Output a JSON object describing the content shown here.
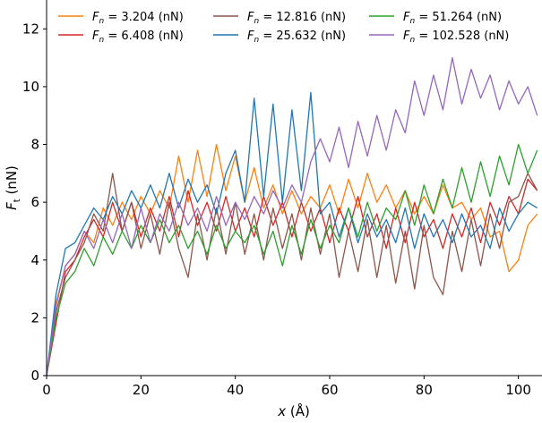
{
  "chart_data": {
    "type": "line",
    "title": "",
    "xlabel": "x (Å)",
    "ylabel": "F_t (nN)",
    "xlim": [
      0,
      105
    ],
    "ylim": [
      0,
      13
    ],
    "xticks": [
      0,
      20,
      40,
      60,
      80,
      100
    ],
    "yticks": [
      0,
      2,
      4,
      6,
      8,
      10,
      12
    ],
    "grid": false,
    "legend_position": "top",
    "x": [
      0,
      2,
      4,
      6,
      8,
      10,
      12,
      14,
      16,
      18,
      20,
      22,
      24,
      26,
      28,
      30,
      32,
      34,
      36,
      38,
      40,
      42,
      44,
      46,
      48,
      50,
      52,
      54,
      56,
      58,
      60,
      62,
      64,
      66,
      68,
      70,
      72,
      74,
      76,
      78,
      80,
      82,
      84,
      86,
      88,
      90,
      92,
      94,
      96,
      98,
      100,
      102,
      104
    ],
    "series": [
      {
        "name": "3.204",
        "label_value": "= 3.204 (nN)",
        "color": "#ff7f0e",
        "values": [
          0,
          2.5,
          3.8,
          4.2,
          5.0,
          4.6,
          5.8,
          5.2,
          6.0,
          5.4,
          6.2,
          5.6,
          6.4,
          5.8,
          7.6,
          6.0,
          7.8,
          6.2,
          8.0,
          6.4,
          7.6,
          6.0,
          7.2,
          5.8,
          6.6,
          5.6,
          6.4,
          5.6,
          6.2,
          5.8,
          6.6,
          5.6,
          6.8,
          5.8,
          7.0,
          6.0,
          6.6,
          5.8,
          6.4,
          5.6,
          6.2,
          5.6,
          6.6,
          5.8,
          6.0,
          5.4,
          5.8,
          4.8,
          5.0,
          3.6,
          4.0,
          5.2,
          5.6
        ]
      },
      {
        "name": "6.408",
        "label_value": "= 6.408 (nN)",
        "color": "#d62728",
        "values": [
          0,
          1.8,
          3.6,
          4.0,
          4.8,
          5.4,
          4.8,
          6.0,
          5.0,
          6.0,
          4.8,
          5.8,
          5.0,
          6.2,
          4.8,
          6.4,
          5.2,
          6.0,
          5.0,
          6.2,
          5.0,
          5.8,
          4.8,
          6.2,
          5.2,
          6.0,
          4.8,
          6.0,
          5.0,
          5.8,
          4.6,
          5.8,
          5.0,
          6.2,
          4.8,
          5.6,
          4.4,
          5.8,
          4.6,
          6.0,
          4.8,
          5.4,
          4.4,
          5.6,
          4.8,
          5.8,
          4.6,
          6.0,
          5.2,
          6.2,
          5.6,
          6.8,
          6.4
        ]
      },
      {
        "name": "12.816",
        "label_value": "= 12.816 (nN)",
        "color": "#8c564b",
        "values": [
          0,
          2.2,
          3.4,
          4.0,
          4.6,
          5.6,
          5.0,
          7.0,
          5.0,
          6.0,
          4.4,
          5.6,
          4.2,
          6.0,
          4.4,
          3.4,
          5.6,
          4.0,
          5.8,
          4.2,
          6.0,
          4.2,
          5.6,
          4.0,
          5.8,
          4.4,
          5.6,
          4.0,
          5.8,
          4.2,
          5.6,
          3.4,
          5.0,
          3.6,
          5.4,
          3.4,
          5.2,
          3.2,
          5.0,
          3.0,
          5.2,
          3.4,
          2.8,
          5.0,
          3.6,
          5.4,
          3.8,
          5.6,
          4.4,
          6.0,
          6.2,
          7.0,
          6.4
        ]
      },
      {
        "name": "25.632",
        "label_value": "= 25.632 (nN)",
        "color": "#1f77b4",
        "values": [
          0,
          2.8,
          4.4,
          4.6,
          5.2,
          5.8,
          5.4,
          6.2,
          5.6,
          6.4,
          5.8,
          6.6,
          5.8,
          7.0,
          5.8,
          6.8,
          6.0,
          6.6,
          5.6,
          7.0,
          7.8,
          6.0,
          9.6,
          6.2,
          9.4,
          6.0,
          9.2,
          6.4,
          9.8,
          5.6,
          6.0,
          4.8,
          5.8,
          4.6,
          5.6,
          4.8,
          5.4,
          4.6,
          5.8,
          4.4,
          5.6,
          4.8,
          5.4,
          4.6,
          5.6,
          4.8,
          5.2,
          4.4,
          5.8,
          5.0,
          5.6,
          6.0,
          5.8
        ]
      },
      {
        "name": "51.264",
        "label_value": "= 51.264 (nN)",
        "color": "#2ca02c",
        "values": [
          0,
          2.0,
          3.2,
          3.6,
          4.4,
          3.8,
          4.8,
          4.2,
          5.0,
          4.4,
          5.2,
          4.6,
          5.4,
          4.6,
          5.2,
          4.4,
          5.0,
          4.2,
          5.2,
          4.4,
          5.0,
          4.6,
          5.2,
          4.2,
          5.0,
          3.8,
          5.2,
          4.2,
          5.4,
          4.4,
          5.2,
          4.6,
          5.8,
          4.8,
          6.0,
          5.0,
          5.8,
          5.4,
          6.4,
          5.2,
          6.6,
          5.6,
          6.8,
          5.8,
          7.2,
          6.0,
          7.4,
          6.2,
          7.6,
          6.6,
          8.0,
          7.0,
          7.8
        ]
      },
      {
        "name": "102.528",
        "label_value": "= 102.528 (nN)",
        "color": "#9467bd",
        "values": [
          0,
          2.4,
          3.8,
          4.2,
          5.0,
          4.4,
          5.4,
          4.6,
          5.6,
          4.4,
          5.8,
          4.6,
          5.6,
          5.0,
          6.0,
          5.2,
          5.8,
          5.0,
          6.2,
          5.2,
          6.0,
          5.4,
          6.2,
          5.6,
          6.4,
          5.8,
          6.6,
          6.0,
          7.4,
          8.2,
          7.4,
          8.6,
          7.2,
          8.8,
          7.6,
          9.0,
          7.8,
          9.2,
          8.4,
          10.2,
          9.0,
          10.4,
          9.2,
          11.0,
          9.4,
          10.6,
          9.6,
          10.4,
          9.2,
          10.2,
          9.4,
          10.0,
          9.0
        ]
      }
    ]
  }
}
